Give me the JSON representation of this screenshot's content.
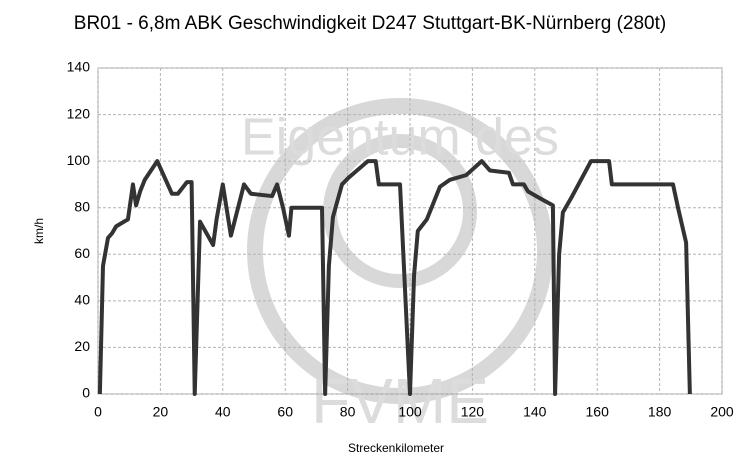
{
  "chart_data": {
    "type": "line",
    "title": "BR01 - 6,8m ABK Geschwindigkeit D247 Stuttgart-BK-Nürnberg (280t)",
    "xlabel": "Streckenkilometer",
    "ylabel": "km/h",
    "watermark": [
      "Eigentum des",
      "FVME"
    ],
    "x": [
      0.6,
      1.6,
      3.2,
      4.5,
      5.8,
      9.6,
      11.2,
      12.2,
      13.5,
      15,
      19,
      23.7,
      25.6,
      28.5,
      30,
      31,
      32.7,
      36.9,
      38,
      40,
      42.6,
      46.8,
      49,
      55.8,
      57.4,
      59.3,
      61.2,
      62,
      71.8,
      72.8,
      74,
      75.3,
      78.2,
      80.4,
      83,
      86.5,
      89,
      90,
      96.8,
      100,
      101.3,
      102.5,
      105.4,
      109.6,
      112.8,
      118,
      123,
      125.6,
      131.7,
      133,
      136.5,
      137.8,
      141.7,
      145.8,
      146.5,
      147.8,
      149,
      152,
      158,
      163.8,
      164.7,
      184.3,
      185.9,
      188.5,
      189.7
    ],
    "series": [
      {
        "name": "Geschwindigkeit",
        "color": "#333333",
        "values": [
          0,
          55,
          67,
          69,
          72,
          75,
          90,
          81,
          87,
          92,
          100,
          86,
          86,
          91,
          91,
          0,
          74,
          64,
          75,
          90,
          68,
          90,
          86,
          85,
          90,
          80,
          68,
          80,
          80,
          0,
          55,
          76,
          90,
          93,
          96,
          100,
          100,
          90,
          90,
          0,
          51,
          70,
          75,
          89,
          92,
          94,
          100,
          96,
          95,
          90,
          90,
          87,
          84,
          81,
          0,
          60,
          78,
          85,
          100,
          100,
          90,
          90,
          80,
          65,
          0
        ]
      }
    ],
    "xlim": [
      0,
      200
    ],
    "xticks": [
      0,
      20,
      40,
      60,
      80,
      100,
      120,
      140,
      160,
      180,
      200
    ],
    "ylim": [
      0,
      140
    ],
    "yticks": [
      0,
      20,
      40,
      60,
      80,
      100,
      120,
      140
    ],
    "grid": true,
    "legend": false
  }
}
